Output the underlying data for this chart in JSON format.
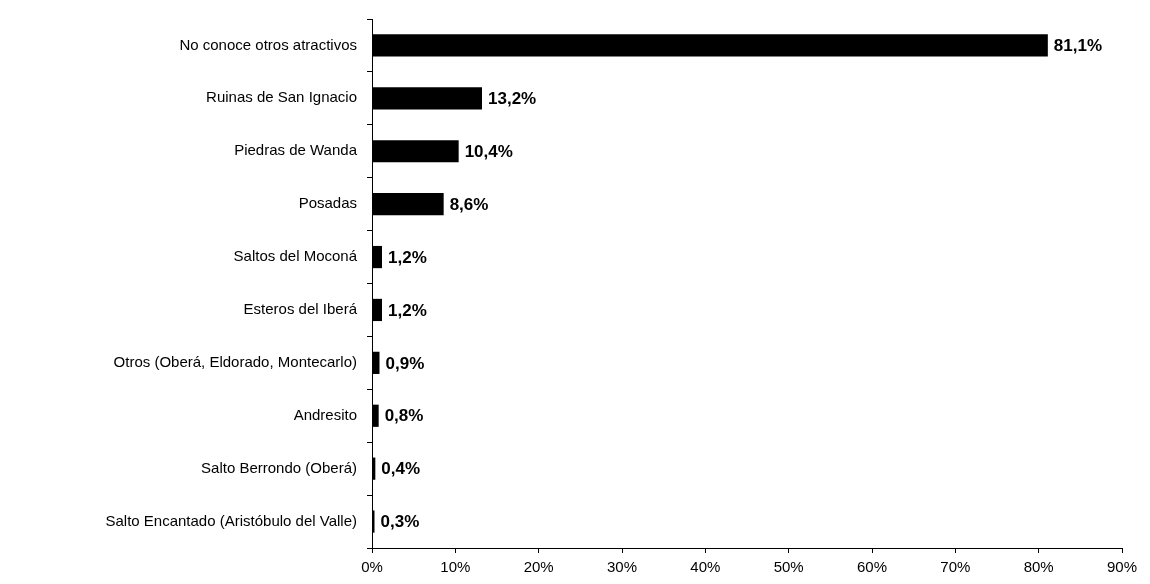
{
  "chart_data": {
    "type": "bar",
    "orientation": "horizontal",
    "categories": [
      "No conoce otros atractivos",
      "Ruinas de San Ignacio",
      "Piedras de Wanda",
      "Posadas",
      "Saltos del Moconá",
      "Esteros del Iberá",
      "Otros (Oberá, Eldorado, Montecarlo)",
      "Andresito",
      "Salto Berrondo (Oberá)",
      "Salto Encantado (Aristóbulo del Valle)"
    ],
    "values": [
      81.1,
      13.2,
      10.4,
      8.6,
      1.2,
      1.2,
      0.9,
      0.8,
      0.4,
      0.3
    ],
    "value_labels": [
      "81,1%",
      "13,2%",
      "10,4%",
      "8,6%",
      "1,2%",
      "1,2%",
      "0,9%",
      "0,8%",
      "0,4%",
      "0,3%"
    ],
    "color": "#000000",
    "xlim": [
      0,
      90
    ],
    "xticks": [
      {
        "value": 0,
        "label": "0%"
      },
      {
        "value": 10,
        "label": "10%"
      },
      {
        "value": 20,
        "label": "20%"
      },
      {
        "value": 30,
        "label": "30%"
      },
      {
        "value": 40,
        "label": "40%"
      },
      {
        "value": 50,
        "label": "50%"
      },
      {
        "value": 60,
        "label": "60%"
      },
      {
        "value": 70,
        "label": "70%"
      },
      {
        "value": 80,
        "label": "80%"
      },
      {
        "value": 90,
        "label": "90%"
      }
    ]
  }
}
